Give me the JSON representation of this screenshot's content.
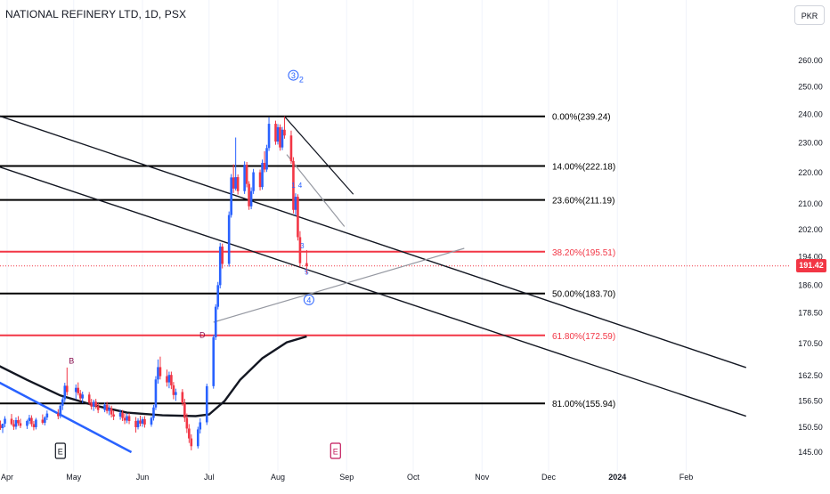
{
  "header": {
    "title": "NATIONAL REFINERY LTD, 1D, PSX",
    "currency_label": "PKR"
  },
  "colors": {
    "up": "#2962ff",
    "down": "#f23645",
    "fib_black": "#000000",
    "fib_red": "#f23645",
    "grid": "#e0e3eb",
    "text": "#131722",
    "wave": "#2962ff",
    "pattern_red": "#c2185b"
  },
  "chart_data": {
    "type": "candlestick",
    "symbol": "NATIONAL REFINERY LTD",
    "interval": "1D",
    "exchange": "PSX",
    "current_price": "191.42",
    "y_axis": {
      "ticks": [
        "260.00",
        "250.00",
        "240.00",
        "230.00",
        "220.00",
        "210.00",
        "202.00",
        "194.00",
        "186.00",
        "178.50",
        "170.50",
        "162.50",
        "156.50",
        "150.50",
        "145.00"
      ],
      "scale": "log"
    },
    "x_axis": {
      "ticks": [
        "Apr",
        "May",
        "Jun",
        "Jul",
        "Aug",
        "Sep",
        "Oct",
        "Nov",
        "Dec",
        "2024",
        "Feb"
      ]
    },
    "fib_levels": [
      {
        "label": "0.00%(239.24)",
        "value": 239.24,
        "color": "black"
      },
      {
        "label": "14.00%(222.18)",
        "value": 222.18,
        "color": "black"
      },
      {
        "label": "23.60%(211.19)",
        "value": 211.19,
        "color": "black"
      },
      {
        "label": "38.20%(195.51)",
        "value": 195.51,
        "color": "red"
      },
      {
        "label": "50.00%(183.70)",
        "value": 183.7,
        "color": "black"
      },
      {
        "label": "61.80%(172.59)",
        "value": 172.59,
        "color": "red"
      },
      {
        "label": "81.00%(155.94)",
        "value": 155.94,
        "color": "black"
      }
    ],
    "wave_labels": [
      {
        "text": "3",
        "circled": true,
        "subscript": "2",
        "date": "2023-08-08",
        "price": 253
      },
      {
        "text": "1",
        "date": "2023-08-08",
        "price": 215
      },
      {
        "text": "4",
        "date": "2023-08-11",
        "price": 215
      },
      {
        "text": "3",
        "date": "2023-08-12",
        "price": 196.5
      },
      {
        "text": "5",
        "date": "2023-08-14",
        "price": 189
      },
      {
        "text": "4",
        "circled": true,
        "date": "2023-08-15",
        "price": 181
      }
    ],
    "pattern_labels": [
      {
        "text": "B",
        "date": "2023-04-30",
        "price": 165.5
      },
      {
        "text": "D",
        "date": "2023-06-28",
        "price": 172
      }
    ],
    "event_markers": [
      {
        "text": "E",
        "date": "2023-04-25",
        "color": "black"
      },
      {
        "text": "E",
        "date": "2023-08-27",
        "color": "pink"
      }
    ],
    "series": [
      {
        "name": "ohlc",
        "values": [
          {
            "d": "2023-03-27",
            "o": 151.0,
            "h": 152.2,
            "l": 149.6,
            "c": 150.6
          },
          {
            "d": "2023-03-28",
            "o": 150.6,
            "h": 151.6,
            "l": 149.4,
            "c": 151.0
          },
          {
            "d": "2023-03-29",
            "o": 151.0,
            "h": 152.0,
            "l": 149.9,
            "c": 150.3
          },
          {
            "d": "2023-03-30",
            "o": 150.3,
            "h": 151.3,
            "l": 149.2,
            "c": 151.3
          },
          {
            "d": "2023-03-31",
            "o": 151.3,
            "h": 153.0,
            "l": 150.5,
            "c": 152.4
          },
          {
            "d": "2023-04-03",
            "o": 152.4,
            "h": 153.5,
            "l": 150.9,
            "c": 151.2
          },
          {
            "d": "2023-04-04",
            "o": 151.2,
            "h": 152.1,
            "l": 149.9,
            "c": 150.6
          },
          {
            "d": "2023-04-05",
            "o": 150.6,
            "h": 152.7,
            "l": 150.0,
            "c": 152.1
          },
          {
            "d": "2023-04-06",
            "o": 152.1,
            "h": 153.0,
            "l": 150.8,
            "c": 151.4
          },
          {
            "d": "2023-04-07",
            "o": 151.4,
            "h": 152.4,
            "l": 150.3,
            "c": 150.8
          },
          {
            "d": "2023-04-10",
            "o": 150.8,
            "h": 152.2,
            "l": 150.1,
            "c": 151.9
          },
          {
            "d": "2023-04-11",
            "o": 151.9,
            "h": 153.3,
            "l": 151.2,
            "c": 152.6
          },
          {
            "d": "2023-04-12",
            "o": 152.6,
            "h": 153.2,
            "l": 150.6,
            "c": 151.2
          },
          {
            "d": "2023-04-13",
            "o": 151.2,
            "h": 151.9,
            "l": 149.8,
            "c": 150.5
          },
          {
            "d": "2023-04-14",
            "o": 150.5,
            "h": 152.6,
            "l": 150.0,
            "c": 152.2
          },
          {
            "d": "2023-04-17",
            "o": 152.2,
            "h": 153.4,
            "l": 151.1,
            "c": 151.5
          },
          {
            "d": "2023-04-18",
            "o": 151.5,
            "h": 153.0,
            "l": 150.9,
            "c": 152.7
          },
          {
            "d": "2023-04-19",
            "o": 152.7,
            "h": 154.3,
            "l": 152.1,
            "c": 153.6
          },
          {
            "d": "2023-04-24",
            "o": 153.6,
            "h": 154.6,
            "l": 152.3,
            "c": 153.0
          },
          {
            "d": "2023-04-25",
            "o": 153.0,
            "h": 155.9,
            "l": 152.5,
            "c": 155.4
          },
          {
            "d": "2023-04-26",
            "o": 155.4,
            "h": 157.5,
            "l": 154.4,
            "c": 156.9
          },
          {
            "d": "2023-04-27",
            "o": 156.9,
            "h": 160.8,
            "l": 156.2,
            "c": 160.1
          },
          {
            "d": "2023-04-28",
            "o": 160.1,
            "h": 164.5,
            "l": 157.8,
            "c": 158.6
          },
          {
            "d": "2023-05-02",
            "o": 158.6,
            "h": 160.4,
            "l": 156.9,
            "c": 159.6
          },
          {
            "d": "2023-05-03",
            "o": 159.6,
            "h": 160.9,
            "l": 157.8,
            "c": 158.3
          },
          {
            "d": "2023-05-04",
            "o": 158.3,
            "h": 159.1,
            "l": 156.5,
            "c": 157.1
          },
          {
            "d": "2023-05-05",
            "o": 157.1,
            "h": 158.7,
            "l": 156.0,
            "c": 158.0
          },
          {
            "d": "2023-05-08",
            "o": 158.0,
            "h": 158.6,
            "l": 155.6,
            "c": 156.1
          },
          {
            "d": "2023-05-09",
            "o": 156.1,
            "h": 157.0,
            "l": 154.5,
            "c": 155.2
          },
          {
            "d": "2023-05-10",
            "o": 155.2,
            "h": 156.8,
            "l": 154.2,
            "c": 156.3
          },
          {
            "d": "2023-05-11",
            "o": 156.3,
            "h": 157.0,
            "l": 154.7,
            "c": 155.3
          },
          {
            "d": "2023-05-12",
            "o": 155.3,
            "h": 156.0,
            "l": 153.7,
            "c": 154.4
          },
          {
            "d": "2023-05-15",
            "o": 154.4,
            "h": 156.1,
            "l": 153.9,
            "c": 155.6
          },
          {
            "d": "2023-05-16",
            "o": 155.6,
            "h": 156.3,
            "l": 153.6,
            "c": 154.2
          },
          {
            "d": "2023-05-17",
            "o": 154.2,
            "h": 155.5,
            "l": 153.2,
            "c": 154.8
          },
          {
            "d": "2023-05-18",
            "o": 154.8,
            "h": 155.4,
            "l": 152.7,
            "c": 153.4
          },
          {
            "d": "2023-05-19",
            "o": 153.4,
            "h": 154.3,
            "l": 152.1,
            "c": 152.9
          },
          {
            "d": "2023-05-22",
            "o": 152.9,
            "h": 154.5,
            "l": 152.2,
            "c": 153.8
          },
          {
            "d": "2023-05-23",
            "o": 153.8,
            "h": 154.4,
            "l": 151.9,
            "c": 152.6
          },
          {
            "d": "2023-05-24",
            "o": 152.6,
            "h": 153.6,
            "l": 151.2,
            "c": 152.0
          },
          {
            "d": "2023-05-25",
            "o": 152.0,
            "h": 153.6,
            "l": 151.4,
            "c": 153.0
          },
          {
            "d": "2023-05-26",
            "o": 153.0,
            "h": 153.7,
            "l": 151.2,
            "c": 151.9
          },
          {
            "d": "2023-05-29",
            "o": 151.9,
            "h": 152.8,
            "l": 149.3,
            "c": 150.5
          },
          {
            "d": "2023-05-30",
            "o": 150.5,
            "h": 152.5,
            "l": 150.0,
            "c": 152.0
          },
          {
            "d": "2023-05-31",
            "o": 152.0,
            "h": 153.1,
            "l": 150.7,
            "c": 151.3
          },
          {
            "d": "2023-06-01",
            "o": 151.3,
            "h": 152.8,
            "l": 150.6,
            "c": 152.3
          },
          {
            "d": "2023-06-02",
            "o": 152.3,
            "h": 153.0,
            "l": 150.4,
            "c": 151.1
          },
          {
            "d": "2023-06-05",
            "o": 151.1,
            "h": 153.0,
            "l": 150.6,
            "c": 152.6
          },
          {
            "d": "2023-06-06",
            "o": 152.6,
            "h": 155.6,
            "l": 152.0,
            "c": 155.0
          },
          {
            "d": "2023-06-07",
            "o": 155.0,
            "h": 162.4,
            "l": 154.4,
            "c": 161.6
          },
          {
            "d": "2023-06-08",
            "o": 161.6,
            "h": 166.5,
            "l": 160.6,
            "c": 164.6
          },
          {
            "d": "2023-06-09",
            "o": 164.6,
            "h": 167.2,
            "l": 161.6,
            "c": 162.4
          },
          {
            "d": "2023-06-12",
            "o": 162.4,
            "h": 164.0,
            "l": 159.9,
            "c": 160.9
          },
          {
            "d": "2023-06-13",
            "o": 160.9,
            "h": 163.5,
            "l": 159.5,
            "c": 162.7
          },
          {
            "d": "2023-06-14",
            "o": 162.7,
            "h": 163.5,
            "l": 159.3,
            "c": 160.2
          },
          {
            "d": "2023-06-15",
            "o": 160.2,
            "h": 161.0,
            "l": 156.9,
            "c": 157.9
          },
          {
            "d": "2023-06-16",
            "o": 157.9,
            "h": 159.4,
            "l": 156.5,
            "c": 158.6
          },
          {
            "d": "2023-06-19",
            "o": 158.6,
            "h": 159.3,
            "l": 155.4,
            "c": 156.0
          },
          {
            "d": "2023-06-20",
            "o": 156.0,
            "h": 157.0,
            "l": 151.7,
            "c": 152.6
          },
          {
            "d": "2023-06-21",
            "o": 152.6,
            "h": 153.6,
            "l": 149.2,
            "c": 150.2
          },
          {
            "d": "2023-06-22",
            "o": 150.2,
            "h": 151.2,
            "l": 147.0,
            "c": 148.0
          },
          {
            "d": "2023-06-23",
            "o": 148.0,
            "h": 148.9,
            "l": 145.4,
            "c": 146.3
          },
          {
            "d": "2023-06-26",
            "o": 146.3,
            "h": 150.6,
            "l": 145.8,
            "c": 150.0
          },
          {
            "d": "2023-06-27",
            "o": 150.0,
            "h": 152.5,
            "l": 149.1,
            "c": 151.6
          },
          {
            "d": "2023-06-30",
            "o": 151.6,
            "h": 160.6,
            "l": 151.0,
            "c": 160.0
          },
          {
            "d": "2023-07-03",
            "o": 160.0,
            "h": 172.7,
            "l": 159.4,
            "c": 172.1
          },
          {
            "d": "2023-07-04",
            "o": 172.1,
            "h": 180.8,
            "l": 171.4,
            "c": 180.1
          },
          {
            "d": "2023-07-05",
            "o": 180.1,
            "h": 186.9,
            "l": 179.4,
            "c": 186.0
          },
          {
            "d": "2023-07-06",
            "o": 186.0,
            "h": 198.1,
            "l": 185.1,
            "c": 197.0
          },
          {
            "d": "2023-07-07",
            "o": 197.0,
            "h": 197.9,
            "l": 190.7,
            "c": 192.0
          },
          {
            "d": "2023-07-10",
            "o": 192.0,
            "h": 207.6,
            "l": 191.2,
            "c": 206.5
          },
          {
            "d": "2023-07-11",
            "o": 206.5,
            "h": 219.5,
            "l": 205.7,
            "c": 218.4
          },
          {
            "d": "2023-07-12",
            "o": 218.4,
            "h": 222.7,
            "l": 213.4,
            "c": 214.8
          },
          {
            "d": "2023-07-13",
            "o": 214.8,
            "h": 231.8,
            "l": 214.2,
            "c": 218.5
          },
          {
            "d": "2023-07-14",
            "o": 218.5,
            "h": 219.4,
            "l": 212.9,
            "c": 214.0
          },
          {
            "d": "2023-07-17",
            "o": 214.0,
            "h": 223.7,
            "l": 213.1,
            "c": 222.6
          },
          {
            "d": "2023-07-18",
            "o": 222.6,
            "h": 223.5,
            "l": 215.2,
            "c": 216.3
          },
          {
            "d": "2023-07-19",
            "o": 216.3,
            "h": 217.2,
            "l": 208.1,
            "c": 209.2
          },
          {
            "d": "2023-07-20",
            "o": 209.2,
            "h": 215.2,
            "l": 208.3,
            "c": 214.0
          },
          {
            "d": "2023-07-21",
            "o": 214.0,
            "h": 221.2,
            "l": 213.1,
            "c": 220.1
          },
          {
            "d": "2023-07-24",
            "o": 220.1,
            "h": 221.0,
            "l": 214.2,
            "c": 215.3
          },
          {
            "d": "2023-07-25",
            "o": 215.3,
            "h": 224.3,
            "l": 214.5,
            "c": 223.2
          },
          {
            "d": "2023-07-26",
            "o": 223.2,
            "h": 227.1,
            "l": 220.1,
            "c": 221.0
          },
          {
            "d": "2023-07-27",
            "o": 221.0,
            "h": 229.3,
            "l": 220.2,
            "c": 228.2
          },
          {
            "d": "2023-07-28",
            "o": 228.2,
            "h": 238.9,
            "l": 227.2,
            "c": 236.6
          },
          {
            "d": "2023-07-31",
            "o": 236.6,
            "h": 237.7,
            "l": 229.3,
            "c": 230.4
          },
          {
            "d": "2023-08-01",
            "o": 230.4,
            "h": 236.5,
            "l": 229.4,
            "c": 235.4
          },
          {
            "d": "2023-08-02",
            "o": 235.4,
            "h": 236.4,
            "l": 227.3,
            "c": 228.4
          },
          {
            "d": "2023-08-03",
            "o": 228.4,
            "h": 235.5,
            "l": 227.5,
            "c": 234.5
          },
          {
            "d": "2023-08-04",
            "o": 234.5,
            "h": 239.2,
            "l": 231.4,
            "c": 232.5
          },
          {
            "d": "2023-08-07",
            "o": 232.5,
            "h": 234.2,
            "l": 222.9,
            "c": 223.8
          },
          {
            "d": "2023-08-08",
            "o": 223.8,
            "h": 225.1,
            "l": 207.0,
            "c": 208.1
          },
          {
            "d": "2023-08-09",
            "o": 208.1,
            "h": 213.3,
            "l": 206.3,
            "c": 212.2
          },
          {
            "d": "2023-08-10",
            "o": 212.2,
            "h": 213.0,
            "l": 198.8,
            "c": 199.8
          },
          {
            "d": "2023-08-11",
            "o": 199.8,
            "h": 201.6,
            "l": 191.1,
            "c": 192.2
          },
          {
            "d": "2023-08-14",
            "o": 192.2,
            "h": 196.0,
            "l": 189.2,
            "c": 191.4
          }
        ]
      }
    ]
  }
}
